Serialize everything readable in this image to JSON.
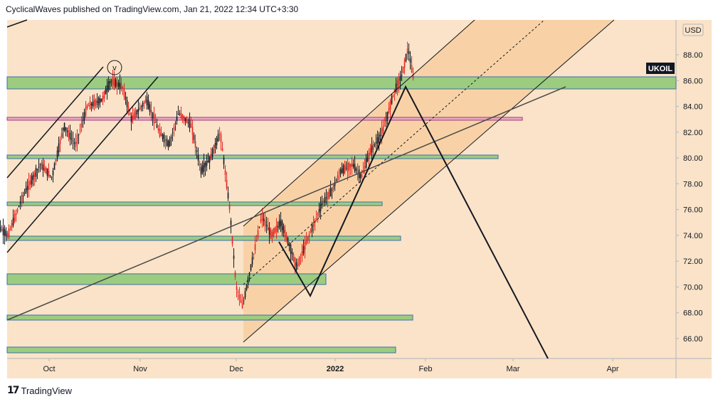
{
  "header": {
    "publish_line": "CyclicalWaves published on TradingView.com, Jan 21, 2022 12:34 UTC+3:30"
  },
  "chart": {
    "symbol_badge": "UKOIL",
    "currency": "USD",
    "wave_label": "v",
    "price_ticks": [
      "88.00",
      "86.00",
      "84.00",
      "82.00",
      "80.00",
      "78.00",
      "76.00",
      "74.00",
      "72.00",
      "70.00",
      "68.00",
      "66.00"
    ],
    "time_ticks": [
      "Oct",
      "Nov",
      "Dec",
      "2022",
      "Feb",
      "Mar",
      "Apr"
    ],
    "colors": {
      "background": "#fae3c8",
      "zone_fill": "#9ccc7f",
      "zone_border": "#3d6fa8",
      "pink_zone": "#d77ea6",
      "channel_fill": "#f6c690",
      "candle_up": "#131722",
      "candle_down": "#e52524"
    }
  },
  "chart_data": {
    "type": "candlestick",
    "symbol": "UKOIL",
    "currency": "USD",
    "ylim": [
      64.0,
      90.0
    ],
    "xlim": [
      "2021-09-12",
      "2022-04-25"
    ],
    "price_ticks": [
      88,
      86,
      84,
      82,
      80,
      78,
      76,
      74,
      72,
      70,
      68,
      66
    ],
    "price_path": [
      [
        "2021-09-12",
        75.0
      ],
      [
        "2021-09-17",
        74.0
      ],
      [
        "2021-09-22",
        77.0
      ],
      [
        "2021-09-28",
        79.5
      ],
      [
        "2021-10-02",
        78.5
      ],
      [
        "2021-10-06",
        82.5
      ],
      [
        "2021-10-10",
        81.0
      ],
      [
        "2021-10-14",
        84.0
      ],
      [
        "2021-10-19",
        84.5
      ],
      [
        "2021-10-22",
        86.0
      ],
      [
        "2021-10-26",
        85.5
      ],
      [
        "2021-10-29",
        83.0
      ],
      [
        "2021-11-03",
        84.5
      ],
      [
        "2021-11-07",
        82.0
      ],
      [
        "2021-11-10",
        81.0
      ],
      [
        "2021-11-13",
        83.5
      ],
      [
        "2021-11-17",
        82.5
      ],
      [
        "2021-11-20",
        79.0
      ],
      [
        "2021-11-23",
        80.0
      ],
      [
        "2021-11-26",
        82.0
      ],
      [
        "2021-11-29",
        76.0
      ],
      [
        "2021-12-01",
        70.0
      ],
      [
        "2021-12-03",
        68.5
      ],
      [
        "2021-12-06",
        72.0
      ],
      [
        "2021-12-09",
        75.5
      ],
      [
        "2021-12-12",
        74.0
      ],
      [
        "2021-12-15",
        75.0
      ],
      [
        "2021-12-18",
        73.0
      ],
      [
        "2021-12-20",
        71.5
      ],
      [
        "2021-12-23",
        73.5
      ],
      [
        "2021-12-28",
        76.5
      ],
      [
        "2021-12-31",
        77.5
      ],
      [
        "2022-01-03",
        79.0
      ],
      [
        "2022-01-07",
        79.5
      ],
      [
        "2022-01-10",
        78.5
      ],
      [
        "2022-01-13",
        80.5
      ],
      [
        "2022-01-16",
        81.5
      ],
      [
        "2022-01-18",
        82.5
      ],
      [
        "2022-01-21",
        85.0
      ],
      [
        "2022-01-24",
        86.5
      ],
      [
        "2022-01-26",
        88.5
      ],
      [
        "2022-01-28",
        86.0
      ]
    ],
    "annotations": [
      {
        "type": "label",
        "text": "v",
        "x": "2021-10-21",
        "y": 87.0
      }
    ]
  }
}
